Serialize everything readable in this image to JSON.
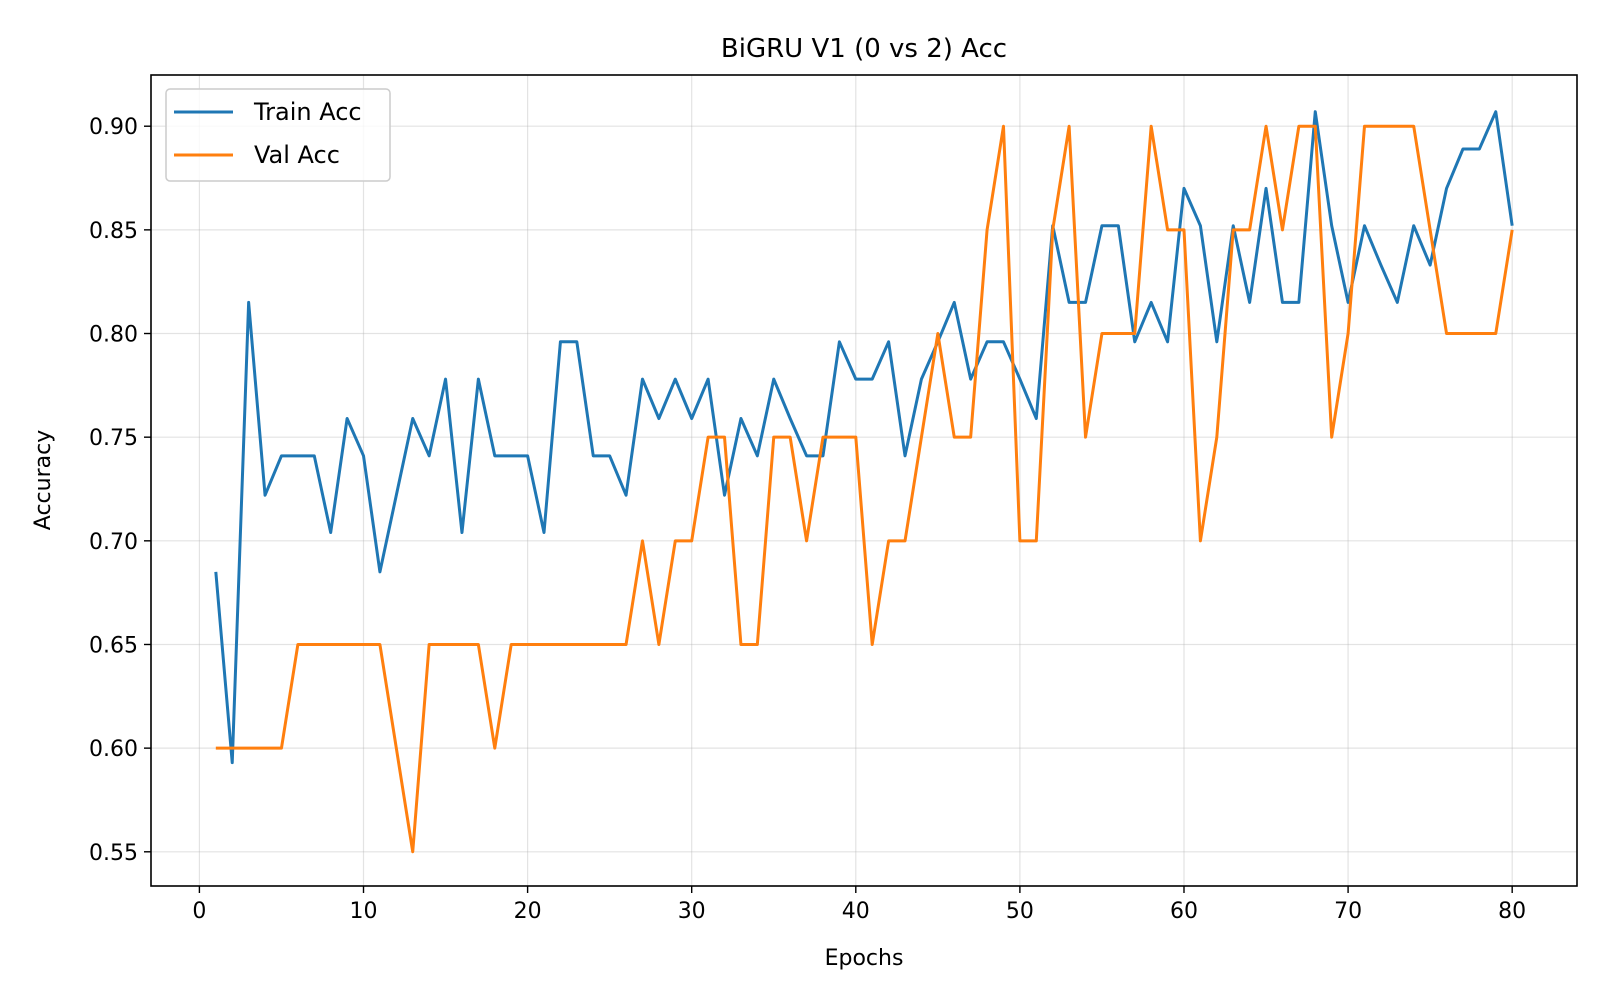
{
  "chart_data": {
    "type": "line",
    "title": "BiGRU V1 (0 vs 2) Acc",
    "xlabel": "Epochs",
    "ylabel": "Accuracy",
    "xlim": [
      -2.95,
      83.95
    ],
    "ylim": [
      0.5335,
      0.9247
    ],
    "xticks": [
      0,
      10,
      20,
      30,
      40,
      50,
      60,
      70,
      80
    ],
    "yticks": [
      0.55,
      0.6,
      0.65,
      0.7,
      0.75,
      0.8,
      0.85,
      0.9
    ],
    "grid": true,
    "legend_position": "upper-left",
    "x": [
      1,
      2,
      3,
      4,
      5,
      6,
      7,
      8,
      9,
      10,
      11,
      12,
      13,
      14,
      15,
      16,
      17,
      18,
      19,
      20,
      21,
      22,
      23,
      24,
      25,
      26,
      27,
      28,
      29,
      30,
      31,
      32,
      33,
      34,
      35,
      36,
      37,
      38,
      39,
      40,
      41,
      42,
      43,
      44,
      45,
      46,
      47,
      48,
      49,
      50,
      51,
      52,
      53,
      54,
      55,
      56,
      57,
      58,
      59,
      60,
      61,
      62,
      63,
      64,
      65,
      66,
      67,
      68,
      69,
      70,
      71,
      72,
      73,
      74,
      75,
      76,
      77,
      78,
      79,
      80
    ],
    "series": [
      {
        "name": "Train Acc",
        "color": "#1f77b4",
        "values": [
          0.685,
          0.593,
          0.815,
          0.722,
          0.741,
          0.741,
          0.741,
          0.704,
          0.759,
          0.741,
          0.685,
          0.722,
          0.759,
          0.741,
          0.778,
          0.704,
          0.778,
          0.741,
          0.741,
          0.741,
          0.704,
          0.796,
          0.796,
          0.741,
          0.741,
          0.722,
          0.778,
          0.759,
          0.778,
          0.759,
          0.778,
          0.722,
          0.759,
          0.741,
          0.778,
          0.759,
          0.741,
          0.741,
          0.796,
          0.778,
          0.778,
          0.796,
          0.741,
          0.778,
          0.796,
          0.815,
          0.778,
          0.796,
          0.796,
          0.778,
          0.759,
          0.852,
          0.815,
          0.815,
          0.852,
          0.852,
          0.796,
          0.815,
          0.796,
          0.87,
          0.852,
          0.796,
          0.852,
          0.815,
          0.87,
          0.815,
          0.815,
          0.907,
          0.852,
          0.815,
          0.852,
          0.833,
          0.815,
          0.852,
          0.833,
          0.87,
          0.889,
          0.889,
          0.907,
          0.852
        ]
      },
      {
        "name": "Val Acc",
        "color": "#ff7f0e",
        "values": [
          0.6,
          0.6,
          0.6,
          0.6,
          0.6,
          0.65,
          0.65,
          0.65,
          0.65,
          0.65,
          0.65,
          0.6,
          0.55,
          0.65,
          0.65,
          0.65,
          0.65,
          0.6,
          0.65,
          0.65,
          0.65,
          0.65,
          0.65,
          0.65,
          0.65,
          0.65,
          0.7,
          0.65,
          0.7,
          0.7,
          0.75,
          0.75,
          0.65,
          0.65,
          0.75,
          0.75,
          0.7,
          0.75,
          0.75,
          0.75,
          0.65,
          0.7,
          0.7,
          0.75,
          0.8,
          0.75,
          0.75,
          0.85,
          0.9,
          0.7,
          0.7,
          0.85,
          0.9,
          0.75,
          0.8,
          0.8,
          0.8,
          0.9,
          0.85,
          0.85,
          0.7,
          0.75,
          0.85,
          0.85,
          0.9,
          0.85,
          0.9,
          0.9,
          0.75,
          0.8,
          0.9,
          0.9,
          0.9,
          0.9,
          0.85,
          0.8,
          0.8,
          0.8,
          0.8,
          0.85
        ]
      }
    ]
  }
}
